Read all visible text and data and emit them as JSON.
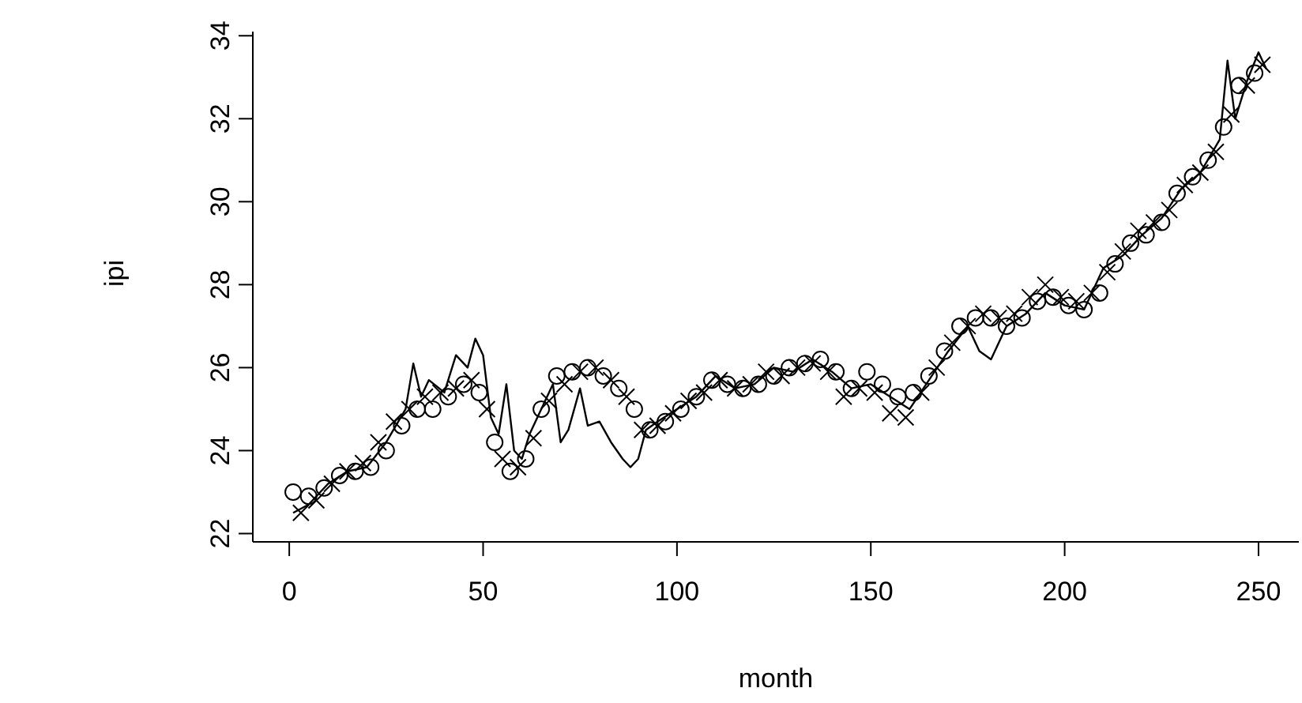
{
  "chart_data": {
    "type": "line",
    "xlabel": "month",
    "ylabel": "ipi",
    "xlim": [
      -9.4,
      260.4
    ],
    "ylim": [
      21.8,
      34.1
    ],
    "xticks": [
      0,
      50,
      100,
      150,
      200,
      250
    ],
    "yticks": [
      22,
      24,
      26,
      28,
      30,
      32,
      34
    ],
    "grid": false,
    "series": [
      {
        "color": "#000000",
        "marker": "none",
        "line_style": "solid",
        "x": [
          1,
          5,
          10,
          15,
          20,
          25,
          30,
          32,
          34,
          36,
          40,
          43,
          46,
          48,
          50,
          52,
          54,
          56,
          58,
          60,
          62,
          65,
          68,
          70,
          72,
          75,
          77,
          80,
          83,
          86,
          88,
          90,
          92,
          95,
          100,
          105,
          110,
          115,
          120,
          125,
          130,
          135,
          140,
          145,
          150,
          155,
          160,
          165,
          170,
          175,
          178,
          181,
          185,
          190,
          195,
          200,
          205,
          210,
          215,
          220,
          225,
          230,
          235,
          240,
          242,
          244,
          247,
          250,
          252
        ],
        "values": [
          22.5,
          22.7,
          23.2,
          23.5,
          23.6,
          24.2,
          25.0,
          26.1,
          25.3,
          25.7,
          25.4,
          26.3,
          26.0,
          26.7,
          26.3,
          24.8,
          24.4,
          25.6,
          24.0,
          23.8,
          24.4,
          25.0,
          25.6,
          24.2,
          24.5,
          25.5,
          24.6,
          24.7,
          24.2,
          23.8,
          23.6,
          23.8,
          24.5,
          24.7,
          25.0,
          25.3,
          25.8,
          25.5,
          25.6,
          26.0,
          25.9,
          26.2,
          25.9,
          25.5,
          25.6,
          25.3,
          25.0,
          25.7,
          26.4,
          27.0,
          26.4,
          26.2,
          27.0,
          27.3,
          27.8,
          27.5,
          27.4,
          28.4,
          28.7,
          29.2,
          29.6,
          30.3,
          30.7,
          31.5,
          33.4,
          32.0,
          32.9,
          33.6,
          33.2
        ]
      },
      {
        "type": "scatter",
        "color": "#000000",
        "marker": "circle",
        "x": [
          1,
          5,
          9,
          13,
          17,
          21,
          25,
          29,
          33,
          37,
          41,
          45,
          49,
          53,
          57,
          61,
          65,
          69,
          73,
          77,
          81,
          85,
          89,
          93,
          97,
          101,
          105,
          109,
          113,
          117,
          121,
          125,
          129,
          133,
          137,
          141,
          145,
          149,
          153,
          157,
          161,
          165,
          169,
          173,
          177,
          181,
          185,
          189,
          193,
          197,
          201,
          205,
          209,
          213,
          217,
          221,
          225,
          229,
          233,
          237,
          241,
          245,
          249
        ],
        "values": [
          23.0,
          22.9,
          23.1,
          23.4,
          23.5,
          23.6,
          24.0,
          24.6,
          25.0,
          25.0,
          25.3,
          25.6,
          25.4,
          24.2,
          23.5,
          23.8,
          25.0,
          25.8,
          25.9,
          26.0,
          25.8,
          25.5,
          25.0,
          24.5,
          24.7,
          25.0,
          25.3,
          25.7,
          25.6,
          25.5,
          25.6,
          25.8,
          26.0,
          26.1,
          26.2,
          25.9,
          25.5,
          25.9,
          25.6,
          25.3,
          25.4,
          25.8,
          26.4,
          27.0,
          27.2,
          27.2,
          27.0,
          27.2,
          27.6,
          27.7,
          27.5,
          27.4,
          27.8,
          28.5,
          29.0,
          29.2,
          29.5,
          30.2,
          30.6,
          31.0,
          31.8,
          32.8,
          33.1
        ]
      },
      {
        "type": "scatter",
        "color": "#000000",
        "marker": "cross",
        "x": [
          3,
          7,
          11,
          15,
          19,
          23,
          27,
          31,
          35,
          39,
          43,
          47,
          51,
          55,
          59,
          63,
          67,
          71,
          75,
          79,
          83,
          87,
          91,
          95,
          99,
          103,
          107,
          111,
          115,
          119,
          123,
          127,
          131,
          135,
          139,
          143,
          147,
          151,
          155,
          159,
          163,
          167,
          171,
          175,
          179,
          183,
          187,
          191,
          195,
          199,
          203,
          207,
          211,
          215,
          219,
          223,
          227,
          231,
          235,
          239,
          243,
          247,
          251
        ],
        "values": [
          22.5,
          22.8,
          23.2,
          23.5,
          23.7,
          24.2,
          24.7,
          25.0,
          25.3,
          25.4,
          25.5,
          25.7,
          25.0,
          23.8,
          23.6,
          24.3,
          25.2,
          25.6,
          25.9,
          26.0,
          25.7,
          25.3,
          24.5,
          24.6,
          24.9,
          25.2,
          25.4,
          25.7,
          25.5,
          25.6,
          25.9,
          25.8,
          26.0,
          26.1,
          25.9,
          25.3,
          25.5,
          25.4,
          24.9,
          24.8,
          25.4,
          26.0,
          26.6,
          27.0,
          27.3,
          27.2,
          27.3,
          27.7,
          28.0,
          27.7,
          27.6,
          27.8,
          28.3,
          28.8,
          29.3,
          29.5,
          29.8,
          30.4,
          30.7,
          31.2,
          32.1,
          32.8,
          33.3
        ]
      }
    ]
  }
}
